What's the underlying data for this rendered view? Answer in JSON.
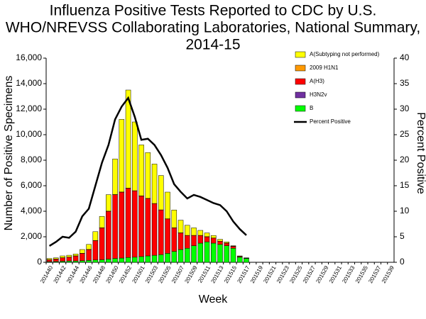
{
  "chart_data": {
    "type": "bar",
    "stacked": true,
    "title": [
      "Influenza Positive Tests Reported to CDC by U.S.",
      "WHO/NREVSS Collaborating Laboratories, National Summary,",
      "2014-15"
    ],
    "x_label": "Week",
    "y_label": "Number of Positive Specimens",
    "y2_label": "Percent Positive",
    "categories": [
      "201440",
      null,
      "201442",
      null,
      "201444",
      null,
      "201446",
      null,
      "201448",
      null,
      "201450",
      null,
      "201452",
      null,
      "201501",
      null,
      "201503",
      null,
      "201505",
      null,
      "201507",
      null,
      "201509",
      null,
      "201511",
      null,
      "201513",
      null,
      "201515",
      null,
      "201517",
      null,
      "201519",
      null,
      "201521",
      null,
      "201523",
      null,
      "201525",
      null,
      "201527",
      null,
      "201529",
      null,
      "201531",
      null,
      "201533",
      null,
      "201535",
      null,
      "201537",
      null,
      "201539"
    ],
    "ylim": [
      0,
      16000
    ],
    "yticks": [
      0,
      {
        "value": 2000,
        "label": "2,000"
      },
      {
        "value": 4000,
        "label": "4,000"
      },
      {
        "value": 6000,
        "label": "6,000"
      },
      {
        "value": 8000,
        "label": "8,000"
      },
      {
        "value": 10000,
        "label": "10,000"
      },
      {
        "value": 12000,
        "label": "12,000"
      },
      {
        "value": 14000,
        "label": "14,000"
      },
      {
        "value": 16000,
        "label": "16,000"
      }
    ],
    "y2lim": [
      0,
      40
    ],
    "y2ticks": [
      0,
      5,
      10,
      15,
      20,
      25,
      30,
      35,
      40
    ],
    "legend": "upper right",
    "series": [
      {
        "name": "A(Subtyping not performed)",
        "color": "#ffff00",
        "values": [
          90,
          90,
          140,
          140,
          140,
          290,
          390,
          690,
          890,
          1290,
          2790,
          5690,
          7690,
          5390,
          3990,
          3590,
          3090,
          2690,
          2090,
          1390,
          990,
          790,
          590,
          390,
          290,
          190,
          140,
          90,
          40,
          40,
          20,
          null,
          null,
          null,
          null,
          null,
          null,
          null,
          null,
          null,
          null,
          null,
          null,
          null,
          null,
          null,
          null,
          null,
          null,
          null,
          null,
          null,
          null
        ]
      },
      {
        "name": "2009 H1N1",
        "color": "#ff9900",
        "values": [
          10,
          10,
          10,
          10,
          10,
          10,
          10,
          10,
          10,
          10,
          10,
          10,
          10,
          10,
          10,
          10,
          10,
          10,
          10,
          10,
          10,
          10,
          10,
          10,
          10,
          10,
          10,
          10,
          10,
          10,
          10,
          null,
          null,
          null,
          null,
          null,
          null,
          null,
          null,
          null,
          null,
          null,
          null,
          null,
          null,
          null,
          null,
          null,
          null,
          null,
          null,
          null,
          null
        ]
      },
      {
        "name": "A(H3)",
        "color": "#ff0000",
        "values": [
          150,
          190,
          270,
          300,
          400,
          580,
          850,
          1520,
          2500,
          3750,
          5000,
          5170,
          5420,
          5200,
          4750,
          4500,
          4050,
          3500,
          2700,
          1850,
          1300,
          1000,
          800,
          600,
          400,
          400,
          250,
          200,
          150,
          50,
          20,
          null,
          null,
          null,
          null,
          null,
          null,
          null,
          null,
          null,
          null,
          null,
          null,
          null,
          null,
          null,
          null,
          null,
          null,
          null,
          null,
          null,
          null
        ]
      },
      {
        "name": "H3N2v",
        "color": "#7030a0",
        "values": [
          0,
          0,
          0,
          0,
          0,
          0,
          0,
          0,
          0,
          0,
          0,
          0,
          0,
          0,
          0,
          0,
          0,
          0,
          0,
          0,
          0,
          0,
          0,
          0,
          0,
          0,
          0,
          0,
          0,
          0,
          0,
          null,
          null,
          null,
          null,
          null,
          null,
          null,
          null,
          null,
          null,
          null,
          null,
          null,
          null,
          null,
          null,
          null,
          null,
          null,
          null,
          null,
          null
        ]
      },
      {
        "name": "B",
        "color": "#00ff00",
        "values": [
          50,
          60,
          80,
          100,
          100,
          120,
          150,
          180,
          200,
          250,
          300,
          330,
          380,
          400,
          450,
          500,
          550,
          600,
          700,
          850,
          1000,
          1100,
          1300,
          1500,
          1600,
          1500,
          1400,
          1300,
          1100,
          400,
          300,
          null,
          null,
          null,
          null,
          null,
          null,
          null,
          null,
          null,
          null,
          null,
          null,
          null,
          null,
          null,
          null,
          null,
          null,
          null,
          null,
          null,
          null
        ]
      },
      {
        "name": "Percent Positive",
        "color": "#000000",
        "type": "line",
        "axis": "y2",
        "values": [
          3.2,
          4,
          5,
          4.8,
          6,
          9,
          10.5,
          15,
          19.5,
          23,
          28,
          30.5,
          32.2,
          28.5,
          24,
          24.2,
          23,
          21,
          18.5,
          15.3,
          13.8,
          12.5,
          13.2,
          12.8,
          12.2,
          11.6,
          11.2,
          10,
          8,
          6.5,
          5.3,
          null,
          null,
          null,
          null,
          null,
          null,
          null,
          null,
          null,
          null,
          null,
          null,
          null,
          null,
          null,
          null,
          null,
          null,
          null,
          null,
          null,
          null
        ]
      }
    ]
  }
}
